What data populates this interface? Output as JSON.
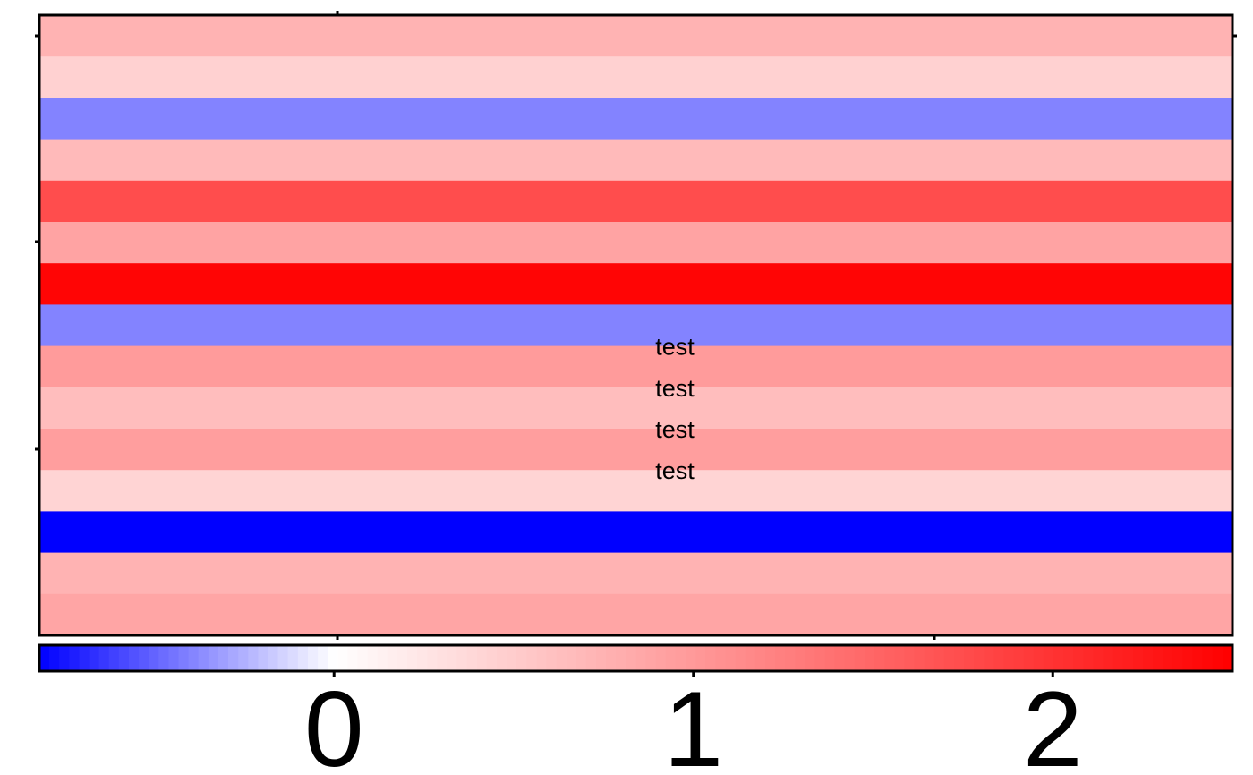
{
  "chart_data": {
    "type": "heatmap",
    "title": "",
    "xlabel": "",
    "ylabel": "",
    "colormap": {
      "name": "blue-white-red",
      "min_color": "#0000ff",
      "mid_color": "#ffffff",
      "max_color": "#ff0000",
      "vmin": -0.82,
      "vcenter": 0,
      "vmax": 2.5
    },
    "rows": [
      {
        "value": 0.75,
        "label": ""
      },
      {
        "value": 0.45,
        "label": ""
      },
      {
        "value": -0.4,
        "label": ""
      },
      {
        "value": 0.68,
        "label": ""
      },
      {
        "value": 1.75,
        "label": ""
      },
      {
        "value": 0.9,
        "label": ""
      },
      {
        "value": 2.45,
        "label": ""
      },
      {
        "value": -0.4,
        "label": ""
      },
      {
        "value": 0.98,
        "label": "test"
      },
      {
        "value": 0.65,
        "label": "test"
      },
      {
        "value": 0.95,
        "label": "test"
      },
      {
        "value": 0.42,
        "label": "test"
      },
      {
        "value": -0.82,
        "label": ""
      },
      {
        "value": 0.75,
        "label": ""
      },
      {
        "value": 0.88,
        "label": ""
      }
    ],
    "colorbar": {
      "ticks": [
        0,
        1,
        2
      ],
      "tick_labels": [
        "0",
        "1",
        "2"
      ]
    },
    "grid": false,
    "legend": "colorbar-bottom"
  }
}
